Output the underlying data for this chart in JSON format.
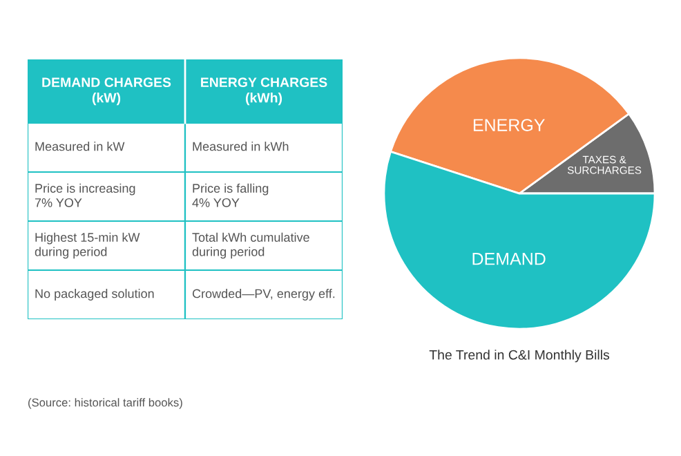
{
  "chart_data": [
    {
      "type": "other",
      "annotations": [
        "DEMAND CHARGES\n(kW)",
        "ENERGY CHARGES\n(kWh)",
        "Measured in kW",
        "Measured in kWh",
        "Price is increasing\n7% YOY",
        "Price is falling\n4% YOY",
        "Highest 15-min kW\nduring period",
        "Total kWh cumulative\nduring period",
        "No packaged solution",
        "Crowded—PV, energy eff."
      ]
    },
    {
      "type": "pie",
      "title": "The Trend in C&I Monthly Bills",
      "categories": [
        "TAXES &\nSURCHARGES",
        "ENERGY",
        "DEMAND"
      ],
      "values": [
        10,
        35,
        55
      ],
      "colors": [
        "#6d6d6d",
        "#f58a4c",
        "#1fc1c3"
      ],
      "annotations": [
        "(Source: historical tariff books)"
      ]
    }
  ]
}
